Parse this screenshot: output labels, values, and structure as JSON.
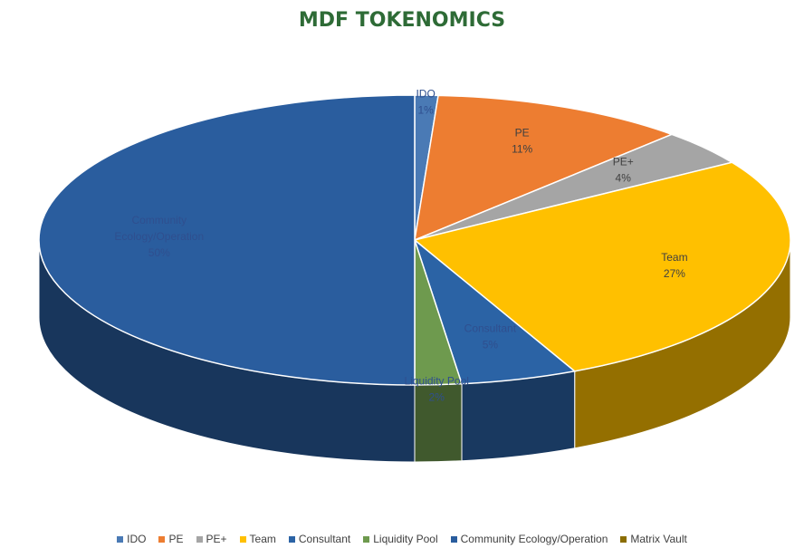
{
  "chart_data": {
    "type": "pie",
    "title": "MDF TOKENOMICS",
    "slices": [
      {
        "label": "IDO",
        "value": 1,
        "display": "1%",
        "color": "#4a7ab5"
      },
      {
        "label": "PE",
        "value": 11,
        "display": "11%",
        "color": "#ed7d31"
      },
      {
        "label": "PE+",
        "value": 4,
        "display": "4%",
        "color": "#a5a5a5"
      },
      {
        "label": "Team",
        "value": 27,
        "display": "27%",
        "color": "#ffc000"
      },
      {
        "label": "Consultant",
        "value": 5,
        "display": "5%",
        "color": "#2b63a5"
      },
      {
        "label": "Liquidity Pool",
        "value": 2,
        "display": "2%",
        "color": "#6e9a4e"
      },
      {
        "label": "Community Ecology/Operation",
        "value": 50,
        "display": "50%",
        "color": "#2a5d9e"
      },
      {
        "label": "Matrix Vault",
        "value": 0,
        "display": "",
        "color": "#8b6d00"
      }
    ],
    "legend_position": "bottom"
  }
}
